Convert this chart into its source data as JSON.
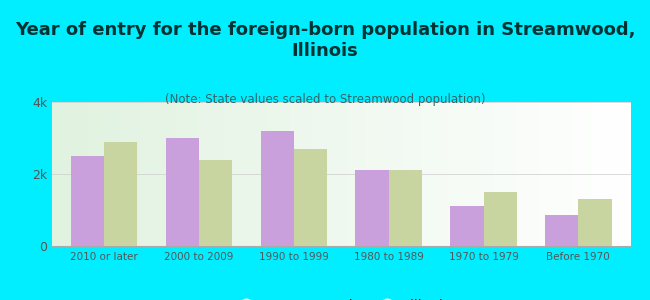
{
  "title": "Year of entry for the foreign-born population in Streamwood,\nIllinois",
  "subtitle": "(Note: State values scaled to Streamwood population)",
  "categories": [
    "2010 or later",
    "2000 to 2009",
    "1990 to 1999",
    "1980 to 1989",
    "1970 to 1979",
    "Before 1970"
  ],
  "streamwood": [
    2500,
    3000,
    3200,
    2100,
    1100,
    850
  ],
  "illinois": [
    2900,
    2400,
    2700,
    2100,
    1500,
    1300
  ],
  "streamwood_color": "#c9a0dc",
  "illinois_color": "#c8d5a0",
  "background_color": "#00eeff",
  "ylim": [
    0,
    4000
  ],
  "yticks": [
    0,
    2000,
    4000
  ],
  "ytick_labels": [
    "0",
    "2k",
    "4k"
  ],
  "bar_width": 0.35,
  "title_fontsize": 13,
  "subtitle_fontsize": 8.5,
  "title_color": "#003333",
  "subtitle_color": "#336666",
  "tick_color": "#555555",
  "legend_streamwood": "Streamwood",
  "legend_illinois": "Illinois"
}
